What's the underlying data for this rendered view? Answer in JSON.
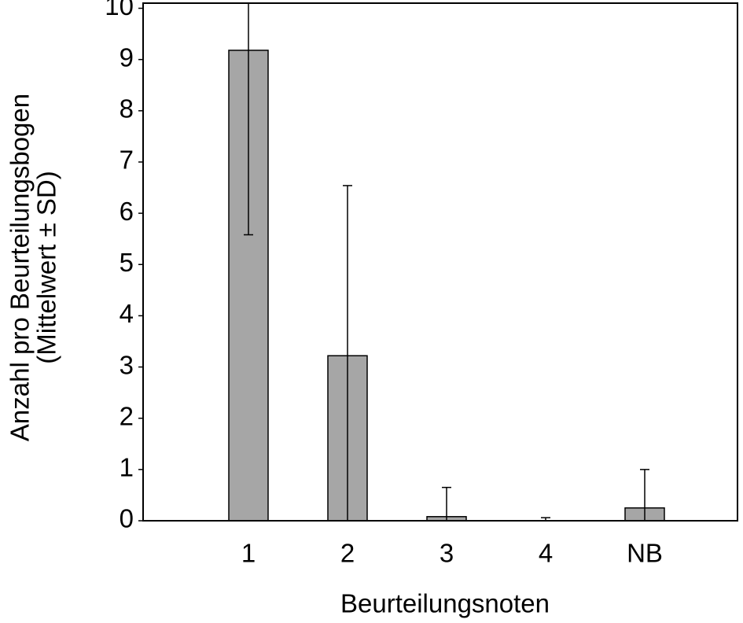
{
  "chart_data": {
    "type": "bar",
    "y_label": [
      "Anzahl pro Beurteilungsbogen",
      "(Mittelwert ± SD)"
    ],
    "x_label": "Beurteilungsnoten",
    "categories": [
      "1",
      "2",
      "3",
      "4",
      "NB"
    ],
    "values": [
      9.18,
      3.22,
      0.08,
      0.0,
      0.25
    ],
    "errors": [
      3.6,
      3.32,
      0.57,
      0.06,
      0.75
    ],
    "color": "#a6a6a6",
    "ylim": [
      0,
      10.1
    ],
    "yticks": [
      0,
      1,
      2,
      3,
      4,
      5,
      6,
      7,
      8,
      9,
      10
    ]
  }
}
